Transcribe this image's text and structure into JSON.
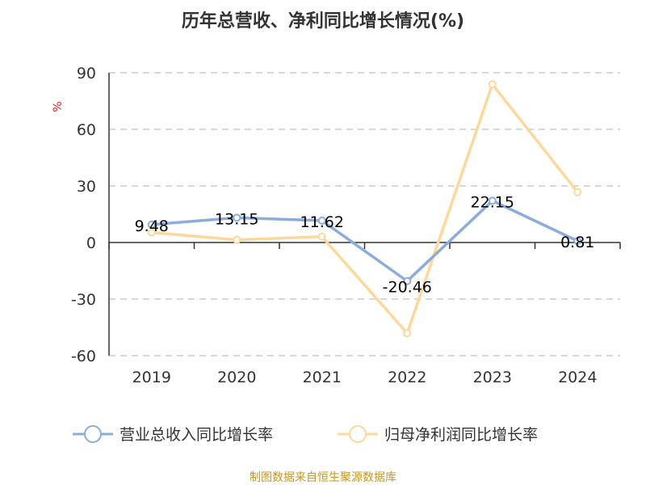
{
  "chart_data": {
    "type": "line",
    "title": "历年总营收、净利同比增长情况(%)",
    "ylabel": "%",
    "xlabel": "",
    "categories": [
      "2019",
      "2020",
      "2021",
      "2022",
      "2023",
      "2024"
    ],
    "ylim": [
      -60,
      90
    ],
    "yticks": [
      -60,
      -30,
      0,
      30,
      60,
      90
    ],
    "grid": true,
    "legend_position": "bottom",
    "series": [
      {
        "name": "营业总收入同比增长率",
        "color": "#8cacdc",
        "values": [
          9.48,
          13.15,
          11.62,
          -20.46,
          22.15,
          0.81
        ],
        "labels": [
          "9.48",
          "13.15",
          "11.62",
          "-20.46",
          "22.15",
          "0.81"
        ]
      },
      {
        "name": "归母净利润同比增长率",
        "color": "#fdd89a",
        "values": [
          5.3,
          1.4,
          3.1,
          -48.1,
          83.9,
          26.7
        ]
      }
    ]
  },
  "footer": {
    "source": "制图数据来自恒生聚源数据库"
  }
}
